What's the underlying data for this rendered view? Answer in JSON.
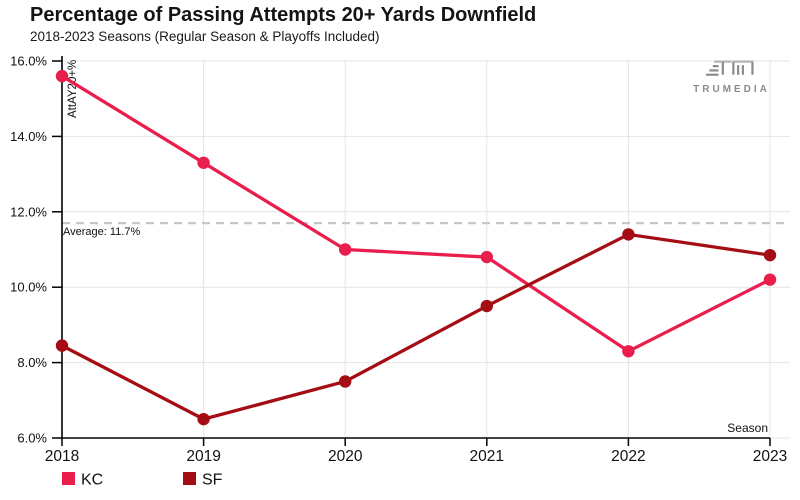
{
  "header": {
    "title": "Percentage of Passing Attempts 20+ Yards Downfield",
    "subtitle": "2018-2023 Seasons (Regular Season & Playoffs Included)"
  },
  "branding": {
    "logo_text": "TRUMEDIA"
  },
  "chart_data": {
    "type": "line",
    "title": "Percentage of Passing Attempts 20+ Yards Downfield",
    "subtitle": "2018-2023 Seasons (Regular Season & Playoffs Included)",
    "categories": [
      "2018",
      "2019",
      "2020",
      "2021",
      "2022",
      "2023"
    ],
    "series": [
      {
        "name": "KC",
        "color": "#E91E4C",
        "values": [
          15.6,
          13.3,
          11.0,
          10.8,
          8.3,
          10.2
        ]
      },
      {
        "name": "SF",
        "color": "#A50D14",
        "values": [
          8.45,
          6.5,
          7.5,
          9.5,
          11.4,
          10.85
        ]
      }
    ],
    "xlabel": "Season",
    "ylabel": "AttAY20+%",
    "ylim": [
      6,
      16
    ],
    "yticks": [
      6,
      8,
      10,
      12,
      14,
      16
    ],
    "ytick_suffix": "%",
    "average": {
      "value": 11.7,
      "label": "Average: 11.7%"
    },
    "grid": true,
    "legend_position": "bottom-left"
  },
  "colors": {
    "background": "#ffffff",
    "axis": "#000000",
    "grid": "#e4e4e4",
    "average_line": "#c8c8c8",
    "text": "#111111",
    "logo": "#8b8b8b"
  }
}
